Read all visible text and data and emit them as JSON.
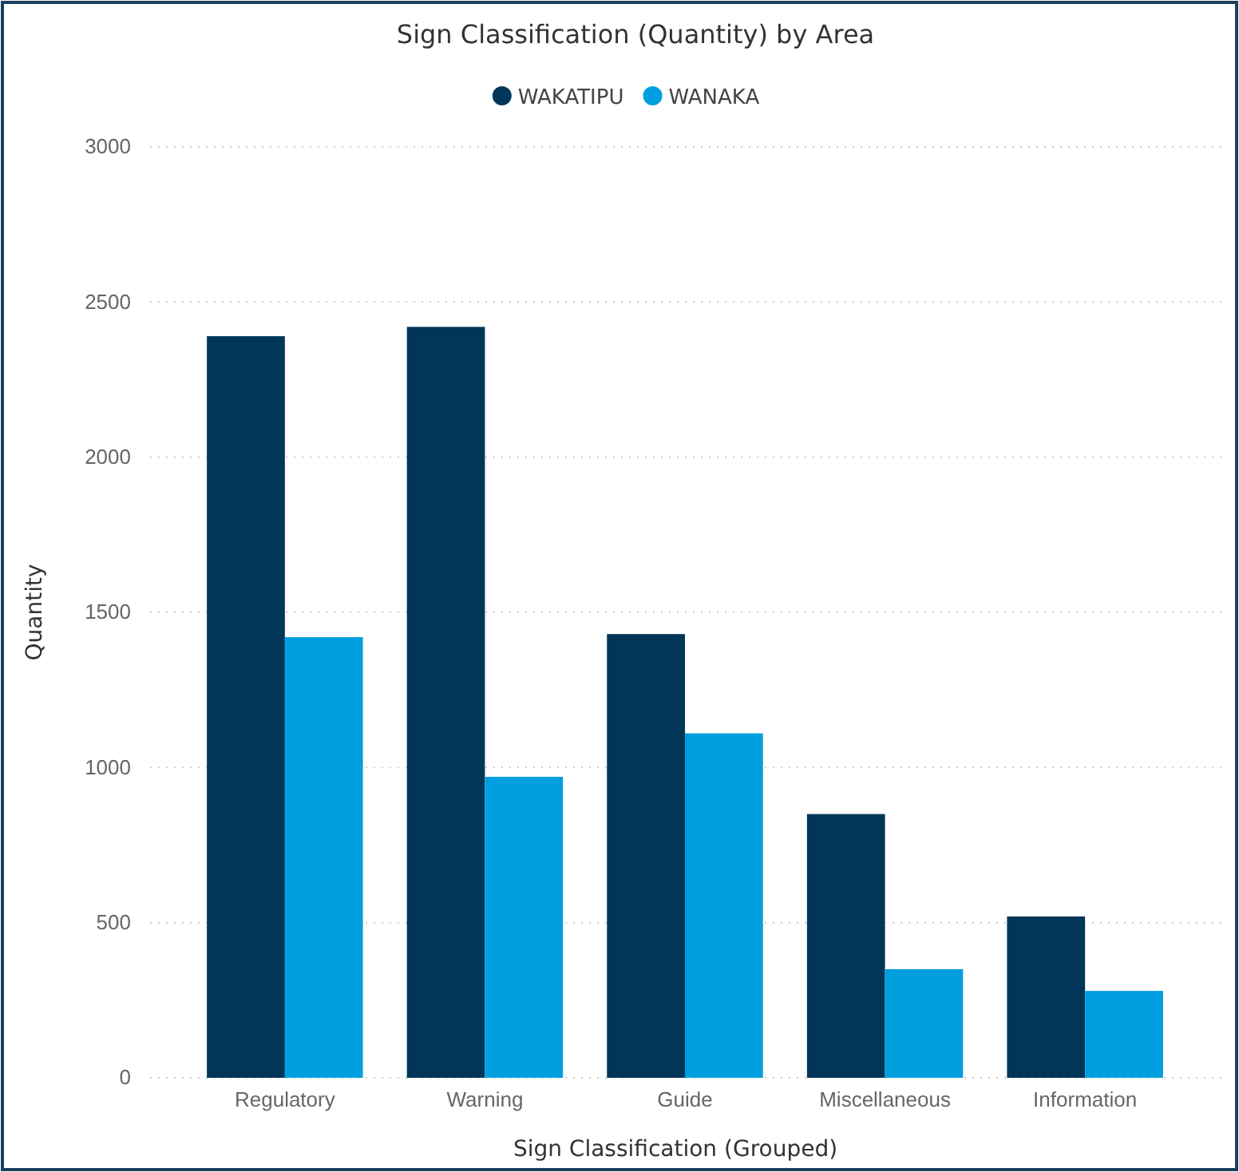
{
  "chart_data": {
    "type": "bar",
    "title": "Sign Classification (Quantity) by Area",
    "xlabel": "Sign Classification (Grouped)",
    "ylabel": "Quantity",
    "categories": [
      "Regulatory",
      "Warning",
      "Guide",
      "Miscellaneous",
      "Information"
    ],
    "series": [
      {
        "name": "WAKATIPU",
        "color": "#023658",
        "values": [
          2390,
          2420,
          1430,
          850,
          520
        ]
      },
      {
        "name": "WANAKA",
        "color": "#009fe0",
        "values": [
          1420,
          970,
          1110,
          350,
          280
        ]
      }
    ],
    "ylim": [
      0,
      3000
    ],
    "yticks": [
      0,
      500,
      1000,
      1500,
      2000,
      2500,
      3000
    ],
    "grid": "y",
    "legend": "top"
  }
}
